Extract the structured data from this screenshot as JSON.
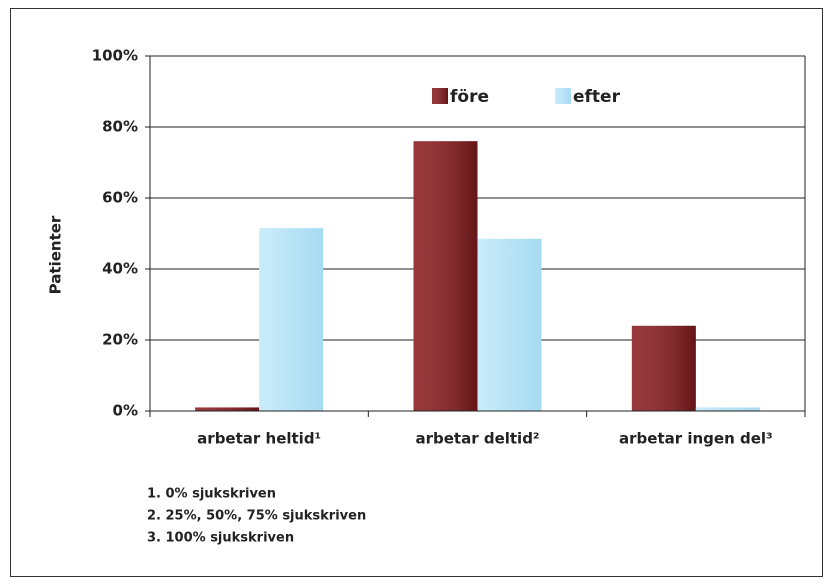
{
  "chart_data": {
    "type": "bar",
    "categories": [
      "arbetar heltid¹",
      "arbetar deltid²",
      "arbetar ingen del³"
    ],
    "series": [
      {
        "name": "före",
        "color": "#8a1c1f",
        "values": [
          1,
          76,
          24
        ]
      },
      {
        "name": "efter",
        "color": "#b9e6f9",
        "values": [
          51.5,
          48.5,
          1
        ]
      }
    ],
    "ylabel": "Patienter",
    "ylim": [
      0,
      100
    ],
    "yticks": [
      {
        "value": 0,
        "label": "0%"
      },
      {
        "value": 20,
        "label": "20%"
      },
      {
        "value": 40,
        "label": "40%"
      },
      {
        "value": 60,
        "label": "60%"
      },
      {
        "value": 80,
        "label": "80%"
      },
      {
        "value": 100,
        "label": "100%"
      }
    ],
    "grid": true,
    "legend": "top",
    "footnotes": [
      "1. 0% sjukskriven",
      "2. 25%, 50%, 75% sjukskriven",
      "3. 100% sjukskriven"
    ]
  }
}
